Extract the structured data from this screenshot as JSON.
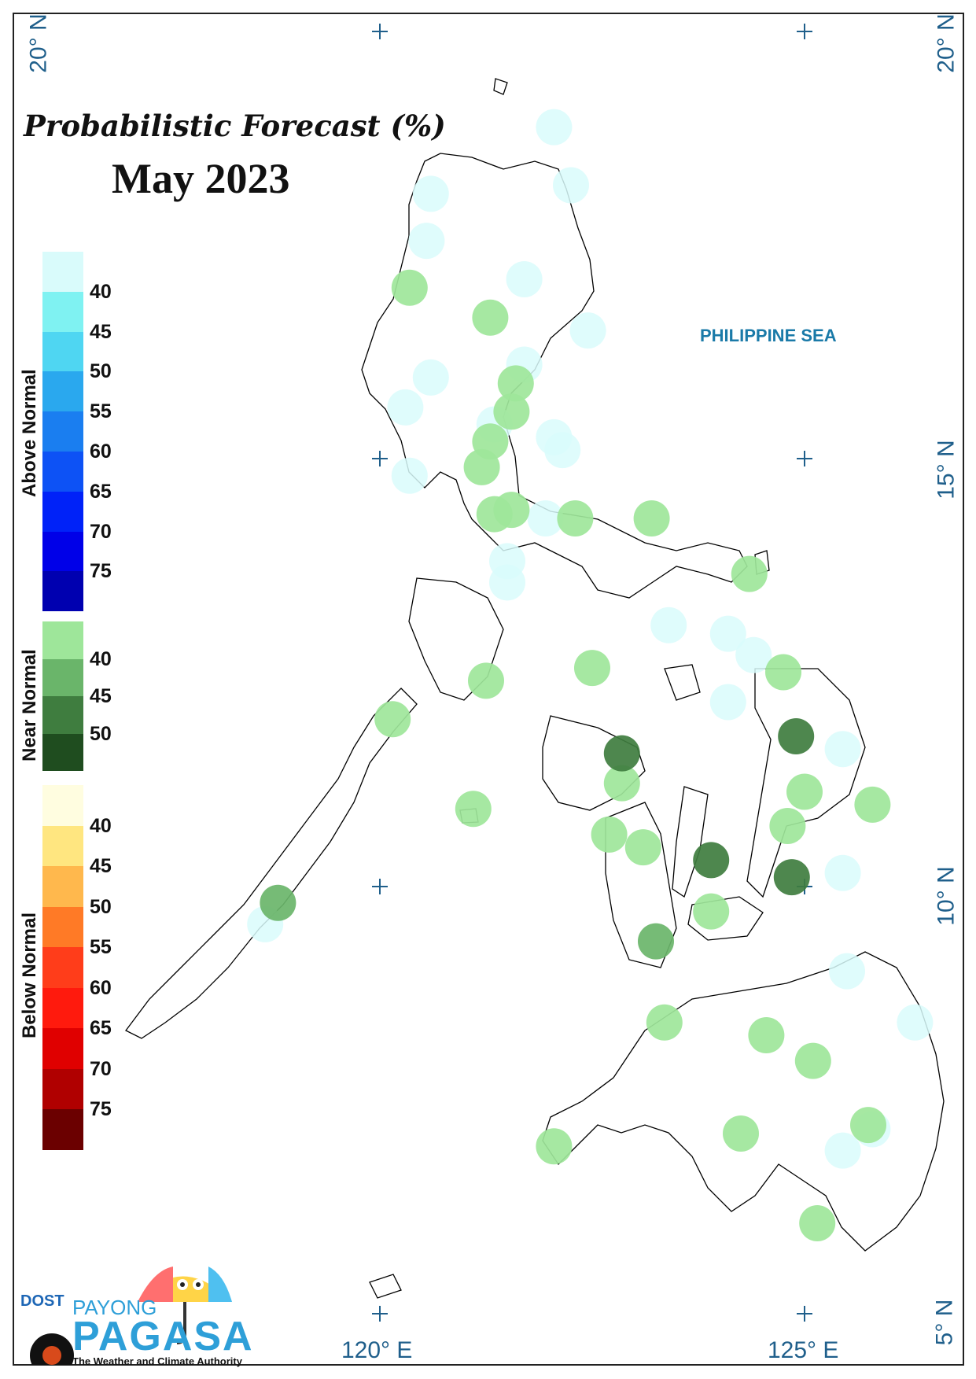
{
  "title": "Probabilistic Forecast (%)",
  "period": "May 2023",
  "sea_label": "PHILIPPINE SEA",
  "lat_labels": {
    "top": "20° N",
    "mid": "15° N",
    "low": "10° N",
    "bottom": "5° N"
  },
  "lon_labels": {
    "west": "120° E",
    "east": "125° E"
  },
  "legend": {
    "above_normal": {
      "label": "Above Normal",
      "ticks": [
        "40",
        "45",
        "50",
        "55",
        "60",
        "65",
        "70",
        "75"
      ],
      "colors": [
        "#d9fbfb",
        "#7ff2f2",
        "#4fd6f2",
        "#2aa8ee",
        "#1a7ef0",
        "#0d52f5",
        "#0022f8",
        "#0000e8",
        "#0000b0"
      ]
    },
    "near_normal": {
      "label": "Near Normal",
      "ticks": [
        "40",
        "45",
        "50"
      ],
      "colors": [
        "#9ee69a",
        "#6ab56a",
        "#3f7d3f",
        "#1f4d1f"
      ]
    },
    "below_normal": {
      "label": "Below Normal",
      "ticks": [
        "40",
        "45",
        "50",
        "55",
        "60",
        "65",
        "70",
        "75"
      ],
      "colors": [
        "#fffde0",
        "#ffe680",
        "#ffb84d",
        "#ff7a26",
        "#ff3d1a",
        "#ff1a0d",
        "#e00000",
        "#b00000",
        "#6b0000"
      ]
    }
  },
  "logo": {
    "dost": "DOST",
    "payong": "PAYONG",
    "pagasa": "PAGASA",
    "tagline": "The Weather and Climate Authority"
  },
  "stations": [
    {
      "lon": 122.05,
      "lat": 18.88,
      "cat": "above",
      "level": 1
    },
    {
      "lon": 122.25,
      "lat": 18.2,
      "cat": "above",
      "level": 1
    },
    {
      "lon": 120.6,
      "lat": 18.1,
      "cat": "above",
      "level": 1
    },
    {
      "lon": 120.55,
      "lat": 17.55,
      "cat": "above",
      "level": 1
    },
    {
      "lon": 121.7,
      "lat": 17.1,
      "cat": "above",
      "level": 1
    },
    {
      "lon": 121.7,
      "lat": 16.1,
      "cat": "above",
      "level": 1
    },
    {
      "lon": 120.6,
      "lat": 15.95,
      "cat": "above",
      "level": 1
    },
    {
      "lon": 120.3,
      "lat": 15.6,
      "cat": "above",
      "level": 1
    },
    {
      "lon": 120.35,
      "lat": 14.8,
      "cat": "above",
      "level": 1
    },
    {
      "lon": 121.35,
      "lat": 15.4,
      "cat": "above",
      "level": 1
    },
    {
      "lon": 122.15,
      "lat": 15.1,
      "cat": "above",
      "level": 1
    },
    {
      "lon": 121.95,
      "lat": 14.3,
      "cat": "above",
      "level": 1
    },
    {
      "lon": 121.5,
      "lat": 13.8,
      "cat": "above",
      "level": 1
    },
    {
      "lon": 124.1,
      "lat": 12.95,
      "cat": "above",
      "level": 1
    },
    {
      "lon": 124.4,
      "lat": 12.7,
      "cat": "above",
      "level": 1
    },
    {
      "lon": 123.4,
      "lat": 13.05,
      "cat": "above",
      "level": 1
    },
    {
      "lon": 121.5,
      "lat": 13.55,
      "cat": "above",
      "level": 1
    },
    {
      "lon": 124.1,
      "lat": 12.15,
      "cat": "above",
      "level": 1
    },
    {
      "lon": 122.05,
      "lat": 15.25,
      "cat": "above",
      "level": 1
    },
    {
      "lon": 122.45,
      "lat": 16.5,
      "cat": "above",
      "level": 1
    },
    {
      "lon": 125.45,
      "lat": 11.6,
      "cat": "above",
      "level": 1
    },
    {
      "lon": 125.45,
      "lat": 10.15,
      "cat": "above",
      "level": 1
    },
    {
      "lon": 125.5,
      "lat": 9.0,
      "cat": "above",
      "level": 1
    },
    {
      "lon": 126.3,
      "lat": 8.4,
      "cat": "above",
      "level": 1
    },
    {
      "lon": 125.45,
      "lat": 6.9,
      "cat": "above",
      "level": 1
    },
    {
      "lon": 125.8,
      "lat": 7.15,
      "cat": "above",
      "level": 1
    },
    {
      "lon": 118.65,
      "lat": 9.55,
      "cat": "above",
      "level": 1
    },
    {
      "lon": 120.35,
      "lat": 17.0,
      "cat": "near",
      "level": 1
    },
    {
      "lon": 121.3,
      "lat": 16.65,
      "cat": "near",
      "level": 1
    },
    {
      "lon": 121.6,
      "lat": 15.88,
      "cat": "near",
      "level": 1
    },
    {
      "lon": 121.55,
      "lat": 15.55,
      "cat": "near",
      "level": 1
    },
    {
      "lon": 121.3,
      "lat": 15.2,
      "cat": "near",
      "level": 1
    },
    {
      "lon": 121.2,
      "lat": 14.9,
      "cat": "near",
      "level": 1
    },
    {
      "lon": 121.35,
      "lat": 14.35,
      "cat": "near",
      "level": 1
    },
    {
      "lon": 121.55,
      "lat": 14.4,
      "cat": "near",
      "level": 1
    },
    {
      "lon": 122.3,
      "lat": 14.3,
      "cat": "near",
      "level": 1
    },
    {
      "lon": 123.2,
      "lat": 14.3,
      "cat": "near",
      "level": 1
    },
    {
      "lon": 124.35,
      "lat": 13.65,
      "cat": "near",
      "level": 1
    },
    {
      "lon": 121.25,
      "lat": 12.4,
      "cat": "near",
      "level": 1
    },
    {
      "lon": 122.5,
      "lat": 12.55,
      "cat": "near",
      "level": 1
    },
    {
      "lon": 124.75,
      "lat": 12.5,
      "cat": "near",
      "level": 1
    },
    {
      "lon": 120.15,
      "lat": 11.95,
      "cat": "near",
      "level": 1
    },
    {
      "lon": 122.85,
      "lat": 11.2,
      "cat": "near",
      "level": 1
    },
    {
      "lon": 125.0,
      "lat": 11.1,
      "cat": "near",
      "level": 1
    },
    {
      "lon": 125.8,
      "lat": 10.95,
      "cat": "near",
      "level": 1
    },
    {
      "lon": 121.1,
      "lat": 10.9,
      "cat": "near",
      "level": 1
    },
    {
      "lon": 122.7,
      "lat": 10.6,
      "cat": "near",
      "level": 1
    },
    {
      "lon": 123.1,
      "lat": 10.45,
      "cat": "near",
      "level": 1
    },
    {
      "lon": 124.8,
      "lat": 10.7,
      "cat": "near",
      "level": 1
    },
    {
      "lon": 123.9,
      "lat": 9.7,
      "cat": "near",
      "level": 1
    },
    {
      "lon": 123.35,
      "lat": 8.4,
      "cat": "near",
      "level": 1
    },
    {
      "lon": 124.55,
      "lat": 8.25,
      "cat": "near",
      "level": 1
    },
    {
      "lon": 125.1,
      "lat": 7.95,
      "cat": "near",
      "level": 1
    },
    {
      "lon": 124.25,
      "lat": 7.1,
      "cat": "near",
      "level": 1
    },
    {
      "lon": 125.75,
      "lat": 7.2,
      "cat": "near",
      "level": 1
    },
    {
      "lon": 122.05,
      "lat": 6.95,
      "cat": "near",
      "level": 1
    },
    {
      "lon": 125.15,
      "lat": 6.05,
      "cat": "near",
      "level": 1
    },
    {
      "lon": 122.85,
      "lat": 11.55,
      "cat": "near",
      "level": 3
    },
    {
      "lon": 124.9,
      "lat": 11.75,
      "cat": "near",
      "level": 3
    },
    {
      "lon": 123.9,
      "lat": 10.3,
      "cat": "near",
      "level": 3
    },
    {
      "lon": 124.85,
      "lat": 10.1,
      "cat": "near",
      "level": 3
    },
    {
      "lon": 123.25,
      "lat": 9.35,
      "cat": "near",
      "level": 2
    },
    {
      "lon": 118.8,
      "lat": 9.8,
      "cat": "near",
      "level": 2
    }
  ]
}
